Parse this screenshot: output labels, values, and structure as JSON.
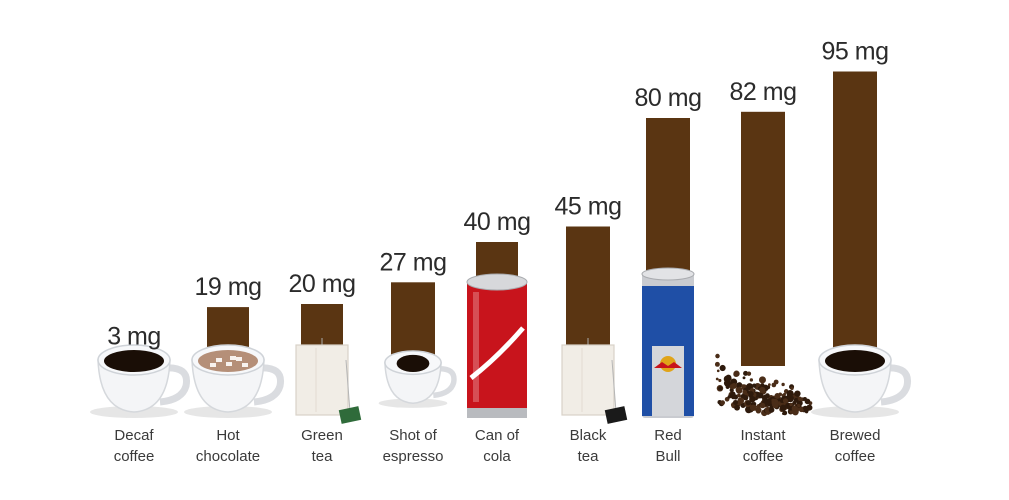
{
  "chart_data": {
    "type": "bar",
    "title": "",
    "xlabel": "",
    "ylabel": "",
    "unit": "mg",
    "ylim": [
      0,
      100
    ],
    "categories": [
      "Decaf coffee",
      "Hot chocolate",
      "Green tea",
      "Shot of espresso",
      "Can of cola",
      "Black tea",
      "Red Bull",
      "Instant coffee",
      "Brewed coffee"
    ],
    "category_lines": [
      [
        "Decaf",
        "coffee"
      ],
      [
        "Hot",
        "chocolate"
      ],
      [
        "Green",
        "tea"
      ],
      [
        "Shot of",
        "espresso"
      ],
      [
        "Can of",
        "cola"
      ],
      [
        "Black",
        "tea"
      ],
      [
        "Red",
        "Bull"
      ],
      [
        "Instant",
        "coffee"
      ],
      [
        "Brewed",
        "coffee"
      ]
    ],
    "values": [
      3,
      19,
      20,
      27,
      40,
      45,
      80,
      82,
      95
    ],
    "value_labels": [
      "3 mg",
      "19 mg",
      "20 mg",
      "27 mg",
      "40 mg",
      "45 mg",
      "80 mg",
      "82 mg",
      "95 mg"
    ],
    "icons": [
      "coffee-cup-icon",
      "hot-chocolate-mug-icon",
      "green-tea-bag-icon",
      "espresso-cup-icon",
      "cola-can-icon",
      "black-tea-bag-icon",
      "red-bull-can-icon",
      "instant-coffee-granules-icon",
      "brewed-coffee-cup-icon"
    ],
    "colors": {
      "bar": "#5a3512",
      "value_text": "#2b2b2b",
      "category_text": "#3a3a3a",
      "coffee": "#1a0e06",
      "cocoa": "#b58f78",
      "cola_red": "#c8141c",
      "red_bull_blue": "#1f4fa6",
      "green_tag": "#2f6b3a",
      "black_tag": "#1a1a1a",
      "granules": "#4a2d18"
    },
    "grid": false,
    "legend": "none"
  }
}
